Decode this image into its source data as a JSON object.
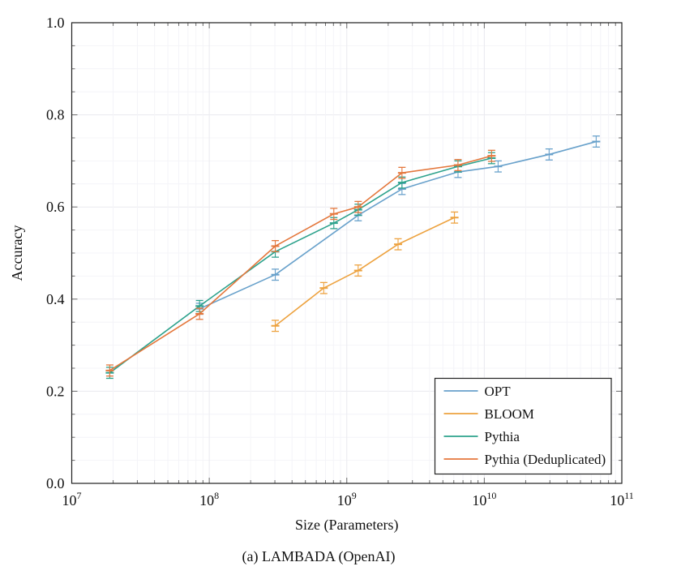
{
  "figure": {
    "caption": "(a) LAMBADA (OpenAI)"
  },
  "chart_data": {
    "type": "line",
    "title": "",
    "xlabel": "Size (Parameters)",
    "ylabel": "Accuracy",
    "x_scale": "log",
    "x_range_exponents": [
      7,
      11
    ],
    "x_tick_labels": [
      "10^7",
      "10^8",
      "10^9",
      "10^10",
      "10^11"
    ],
    "ylim": [
      0.0,
      1.0
    ],
    "y_major_step": 0.2,
    "y_minor_step": 0.05,
    "y_tick_labels": [
      "0.0",
      "0.2",
      "0.4",
      "0.6",
      "0.8",
      "1.0"
    ],
    "grid": true,
    "error_bars": true,
    "legend_position": "lower right",
    "frame_color": "#1f1f1f",
    "tick_color": "#6b6b6b",
    "grid_minor_color": "#f4f4f8",
    "grid_major_color": "#eaeaef",
    "series": [
      {
        "name": "OPT",
        "color": "#68A1CB",
        "x": [
          85000000.0,
          302000000.0,
          1210000000.0,
          2520000000.0,
          6440000000.0,
          12600000000.0,
          29600000000.0,
          65100000000.0
        ],
        "y": [
          0.379,
          0.453,
          0.582,
          0.639,
          0.676,
          0.688,
          0.714,
          0.742
        ],
        "err": 0.012
      },
      {
        "name": "BLOOM",
        "color": "#EDA23F",
        "x": [
          302000000.0,
          680000000.0,
          1210000000.0,
          2360000000.0,
          6070000000.0
        ],
        "y": [
          0.342,
          0.424,
          0.462,
          0.519,
          0.577
        ],
        "err": 0.012
      },
      {
        "name": "Pythia",
        "color": "#2DA28C",
        "x": [
          18900000.0,
          85000000.0,
          302000000.0,
          805000000.0,
          1210000000.0,
          2520000000.0,
          6440000000.0,
          11300000000.0
        ],
        "y": [
          0.24,
          0.385,
          0.503,
          0.565,
          0.594,
          0.653,
          0.688,
          0.706
        ],
        "err": 0.012
      },
      {
        "name": "Pythia (Deduplicated)",
        "color": "#E4773C",
        "x": [
          18900000.0,
          85000000.0,
          302000000.0,
          805000000.0,
          1210000000.0,
          2520000000.0,
          6440000000.0,
          11300000000.0
        ],
        "y": [
          0.245,
          0.368,
          0.515,
          0.585,
          0.6,
          0.674,
          0.691,
          0.711
        ],
        "err": 0.012
      }
    ]
  }
}
